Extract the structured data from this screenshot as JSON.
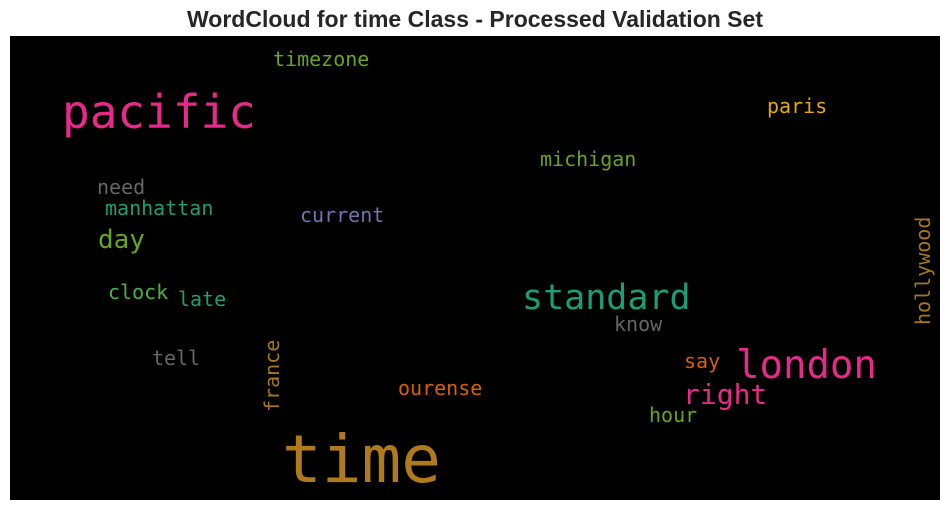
{
  "title": "WordCloud for time Class - Processed Validation Set",
  "words": {
    "time": {
      "text": "time",
      "color": "#b07a1c"
    },
    "pacific": {
      "text": "pacific",
      "color": "#e7298a"
    },
    "london": {
      "text": "london",
      "color": "#e7298a"
    },
    "standard": {
      "text": "standard",
      "color": "#1b9e77"
    },
    "right": {
      "text": "right",
      "color": "#e7298a"
    },
    "day": {
      "text": "day",
      "color": "#66a61e"
    },
    "timezone": {
      "text": "timezone",
      "color": "#66a61e"
    },
    "paris": {
      "text": "paris",
      "color": "#e6ab02"
    },
    "michigan": {
      "text": "michigan",
      "color": "#66a61e"
    },
    "need": {
      "text": "need",
      "color": "#666666"
    },
    "manhattan": {
      "text": "manhattan",
      "color": "#1b9e77"
    },
    "current": {
      "text": "current",
      "color": "#7570b3"
    },
    "hollywood": {
      "text": "hollywood",
      "color": "#a6761d"
    },
    "clock": {
      "text": "clock",
      "color": "#4daf4a"
    },
    "late": {
      "text": "late",
      "color": "#1b9e77"
    },
    "know": {
      "text": "know",
      "color": "#666666"
    },
    "tell": {
      "text": "tell",
      "color": "#666666"
    },
    "france": {
      "text": "france",
      "color": "#a6761d"
    },
    "say": {
      "text": "say",
      "color": "#d95f02"
    },
    "ourense": {
      "text": "ourense",
      "color": "#d95f02"
    },
    "hour": {
      "text": "hour",
      "color": "#66a61e"
    }
  }
}
